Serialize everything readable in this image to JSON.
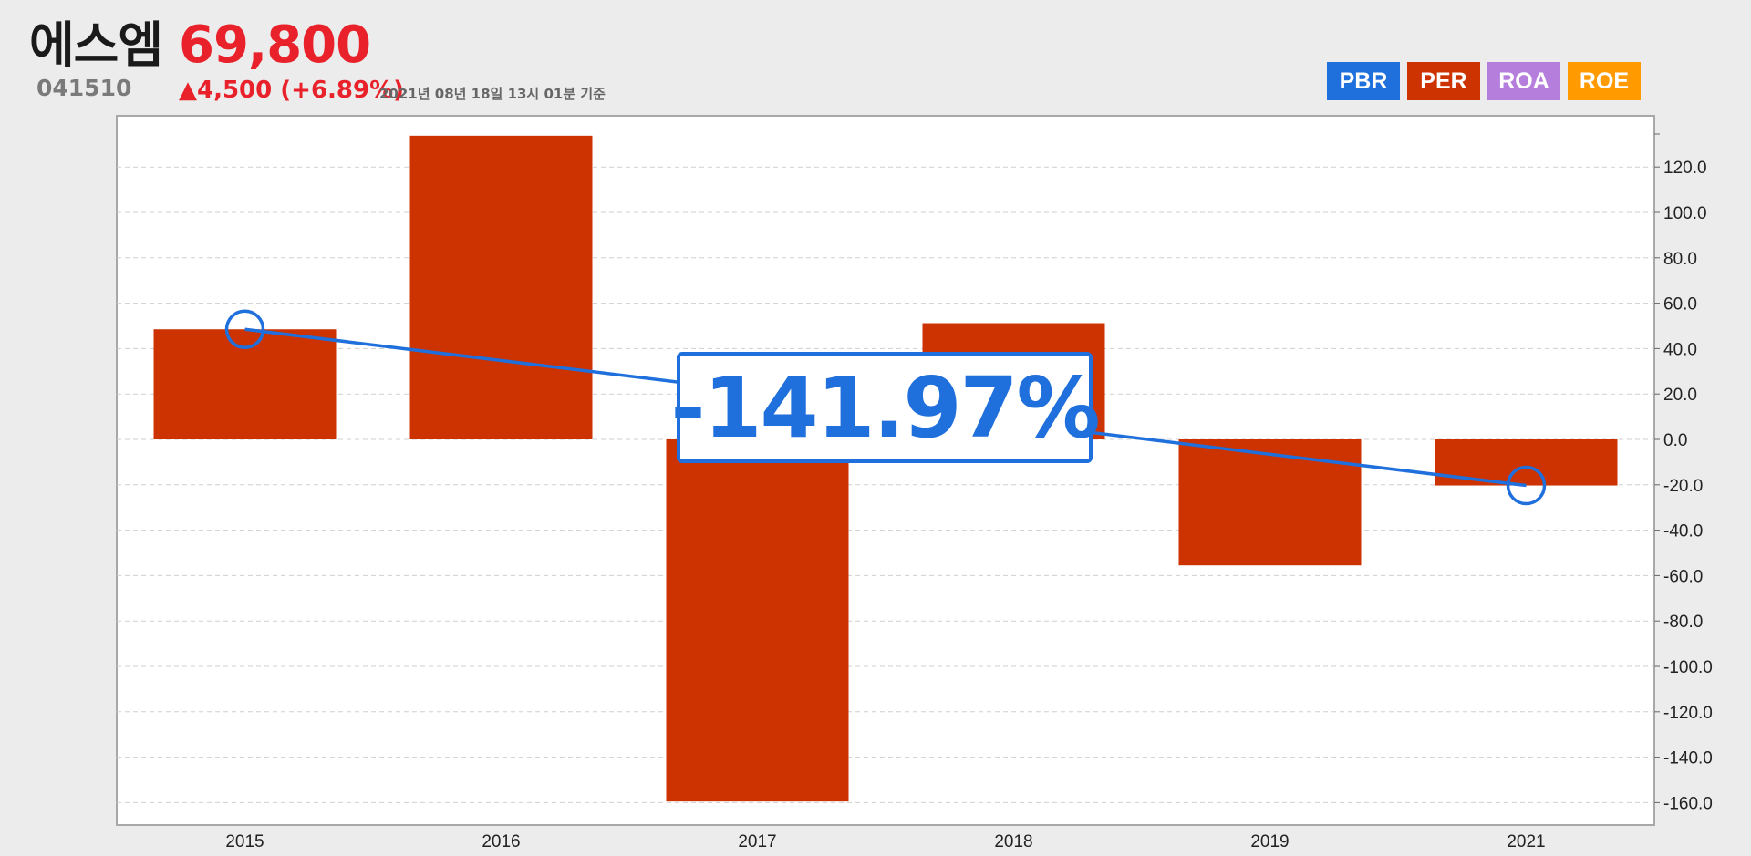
{
  "stock": {
    "name": "에스엠",
    "code": "041510",
    "price": "69,800",
    "change": "▲4,500 (+6.89%)",
    "as_of": "2021년 08년 18일 13시 01분 기준"
  },
  "metric_buttons": [
    {
      "label": "PBR",
      "color": "#1f6fdc"
    },
    {
      "label": "PER",
      "color": "#cc3300"
    },
    {
      "label": "ROA",
      "color": "#b57edc"
    },
    {
      "label": "ROE",
      "color": "#ff9a00"
    }
  ],
  "callout": {
    "text": "-141.97%",
    "color": "#1f6fdc"
  },
  "chart_data": {
    "type": "bar",
    "categories": [
      "2015",
      "2016",
      "2017",
      "2018",
      "2019",
      "2021"
    ],
    "series": [
      {
        "values": [
          48.5,
          133.8,
          -159.5,
          51.2,
          -55.5,
          -20.3
        ],
        "color": "#cc3300"
      }
    ],
    "trend_line": {
      "from": {
        "x": "2015",
        "y": 48.5
      },
      "to": {
        "x": "2021",
        "y": -20.3
      },
      "color": "#1f6fdc"
    },
    "yticks": [
      "120.0",
      "100.0",
      "80.0",
      "60.0",
      "40.0",
      "20.0",
      "0.0",
      "-20.0",
      "-40.0",
      "-60.0",
      "-80.0",
      "-100.0",
      "-120.0",
      "-140.0",
      "-160.0"
    ],
    "ylim": [
      -170,
      134
    ],
    "grid": true,
    "y_axis_side": "right"
  }
}
